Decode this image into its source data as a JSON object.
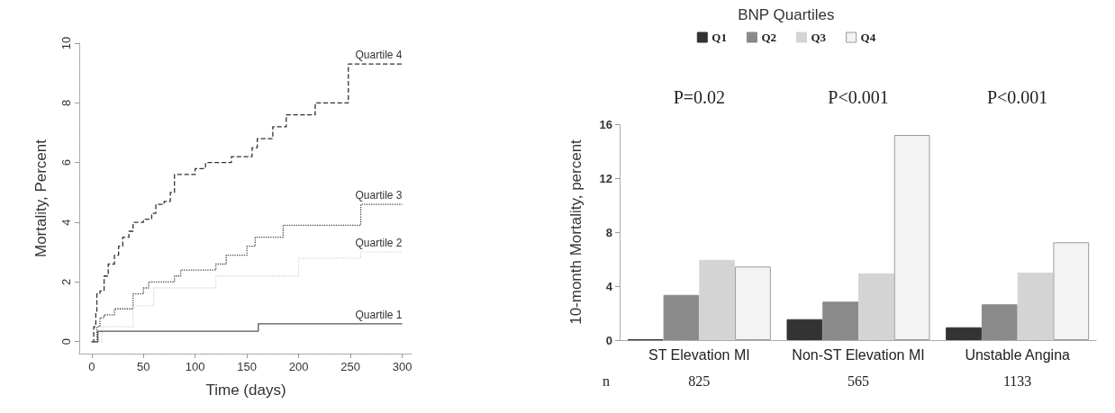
{
  "chart_data": [
    {
      "type": "step",
      "xlabel": "Time (days)",
      "ylabel": "Mortality, Percent",
      "xlim": [
        -12,
        310
      ],
      "ylim": [
        -0.4,
        10
      ],
      "xticks": [
        0,
        50,
        100,
        150,
        200,
        250,
        300
      ],
      "yticks": [
        0,
        2,
        4,
        6,
        8,
        10
      ],
      "grid": false,
      "legend": false,
      "marker": "none",
      "series": [
        {
          "name": "Quartile 4",
          "color": "#333333",
          "line_style": "dashed",
          "x": [
            0,
            2,
            4,
            5,
            8,
            12,
            16,
            22,
            26,
            30,
            36,
            40,
            50,
            58,
            62,
            70,
            76,
            80,
            100,
            110,
            135,
            155,
            160,
            175,
            188,
            216,
            248,
            300
          ],
          "values": [
            0,
            0.5,
            1,
            1.6,
            1.7,
            2.2,
            2.6,
            2.9,
            3.2,
            3.5,
            3.7,
            4.0,
            4.1,
            4.3,
            4.6,
            4.7,
            5.0,
            5.6,
            5.8,
            6.0,
            6.2,
            6.5,
            6.8,
            7.2,
            7.6,
            8.0,
            9.3,
            9.3
          ]
        },
        {
          "name": "Quartile 3",
          "color": "#444444",
          "line_style": "dotted",
          "x": [
            0,
            5,
            8,
            12,
            22,
            40,
            50,
            55,
            80,
            86,
            120,
            130,
            150,
            158,
            185,
            260,
            300
          ],
          "values": [
            0,
            0.5,
            0.8,
            0.9,
            1.1,
            1.6,
            1.8,
            2.0,
            2.2,
            2.4,
            2.6,
            2.9,
            3.2,
            3.5,
            3.9,
            4.6,
            4.6
          ]
        },
        {
          "name": "Quartile 2",
          "color": "#d8d8d8",
          "line_style": "dotted",
          "x": [
            0,
            10,
            40,
            60,
            120,
            200,
            260,
            300
          ],
          "values": [
            0,
            0.5,
            1.2,
            1.8,
            2.2,
            2.8,
            3.0,
            3.0
          ]
        },
        {
          "name": "Quartile 1",
          "color": "#555555",
          "line_style": "solid",
          "x": [
            0,
            6,
            161,
            300
          ],
          "values": [
            0,
            0.35,
            0.6,
            0.6
          ]
        }
      ]
    },
    {
      "type": "bar",
      "legend_title": "BNP Quartiles",
      "ylabel": "10-month Mortality, percent",
      "categories": [
        "ST Elevation MI",
        "Non-ST Elevation MI",
        "Unstable Angina"
      ],
      "ylim": [
        0,
        16
      ],
      "yticks": [
        0,
        4,
        8,
        12,
        16
      ],
      "grid": false,
      "legend": "top",
      "series": [
        {
          "name": "Q1",
          "color": "#333333",
          "values": [
            0.05,
            1.55,
            0.95
          ]
        },
        {
          "name": "Q2",
          "color": "#8a8a8a",
          "values": [
            3.35,
            2.85,
            2.65
          ]
        },
        {
          "name": "Q3",
          "color": "#d4d4d4",
          "values": [
            5.95,
            4.95,
            5.0
          ]
        },
        {
          "name": "Q4",
          "color": "#f3f3f3",
          "values": [
            5.45,
            15.2,
            7.25
          ]
        }
      ],
      "annotations": [
        "P=0.02",
        "P<0.001",
        "P<0.001",
        "n",
        "825",
        "565",
        "1133"
      ]
    }
  ]
}
